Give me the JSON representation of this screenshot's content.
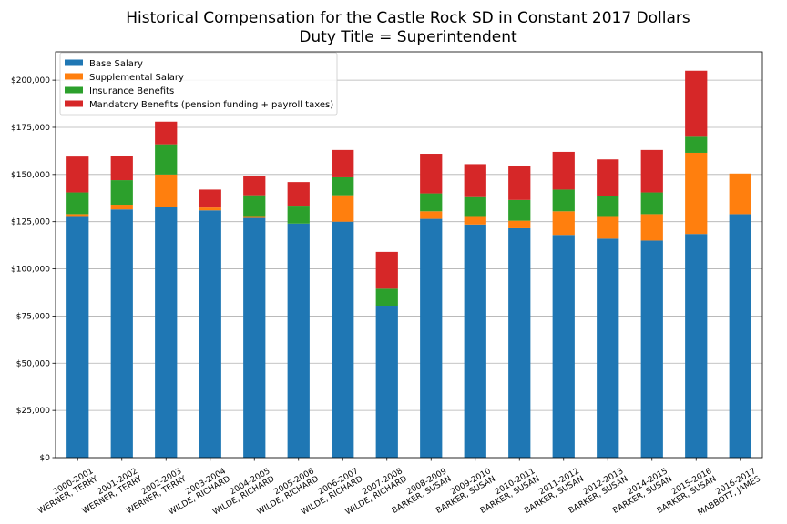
{
  "chart_data": {
    "type": "bar",
    "stacked": true,
    "title": "Historical Compensation for the Castle Rock SD in Constant 2017 Dollars",
    "subtitle": "Duty Title = Superintendent",
    "xlabel": "",
    "ylabel": "",
    "ylim": [
      0,
      215000
    ],
    "yticks": [
      0,
      25000,
      50000,
      75000,
      100000,
      125000,
      150000,
      175000,
      200000
    ],
    "ytick_labels": [
      "$0",
      "$25,000",
      "$50,000",
      "$75,000",
      "$100,000",
      "$125,000",
      "$150,000",
      "$175,000",
      "$200,000"
    ],
    "grid": "horizontal",
    "legend_position": "top-left",
    "categories": [
      [
        "2000-2001",
        "WERNER, TERRY"
      ],
      [
        "2001-2002",
        "WERNER, TERRY"
      ],
      [
        "2002-2003",
        "WERNER, TERRY"
      ],
      [
        "2003-2004",
        "WILDE, RICHARD"
      ],
      [
        "2004-2005",
        "WILDE, RICHARD"
      ],
      [
        "2005-2006",
        "WILDE, RICHARD"
      ],
      [
        "2006-2007",
        "WILDE, RICHARD"
      ],
      [
        "2007-2008",
        "WILDE, RICHARD"
      ],
      [
        "2008-2009",
        "BARKER, SUSAN"
      ],
      [
        "2009-2010",
        "BARKER, SUSAN"
      ],
      [
        "2010-2011",
        "BARKER, SUSAN"
      ],
      [
        "2011-2012",
        "BARKER, SUSAN"
      ],
      [
        "2012-2013",
        "BARKER, SUSAN"
      ],
      [
        "2014-2015",
        "BARKER, SUSAN"
      ],
      [
        "2015-2016",
        "BARKER, SUSAN"
      ],
      [
        "2016-2017",
        "MABBOTT, JAMES"
      ]
    ],
    "series": [
      {
        "name": "Base Salary",
        "color": "#1f77b4",
        "values": [
          128000,
          131500,
          133000,
          131000,
          127000,
          124000,
          125000,
          80500,
          126500,
          123500,
          121500,
          118000,
          116000,
          115000,
          118500,
          129000
        ]
      },
      {
        "name": "Supplemental Salary",
        "color": "#ff7f0e",
        "values": [
          1000,
          2500,
          17000,
          1500,
          1000,
          0,
          14000,
          0,
          4000,
          4500,
          4000,
          12500,
          12000,
          14000,
          43000,
          21500
        ]
      },
      {
        "name": "Insurance Benefits",
        "color": "#2ca02c",
        "values": [
          11500,
          13000,
          16000,
          0,
          11000,
          9500,
          9500,
          9000,
          9500,
          10000,
          11000,
          11500,
          10500,
          11500,
          8500,
          0
        ]
      },
      {
        "name": "Mandatory Benefits (pension funding + payroll taxes)",
        "color": "#d62728",
        "values": [
          19000,
          13000,
          12000,
          9500,
          10000,
          12500,
          14500,
          19500,
          21000,
          17500,
          18000,
          20000,
          19500,
          22500,
          35000,
          0
        ]
      }
    ]
  }
}
